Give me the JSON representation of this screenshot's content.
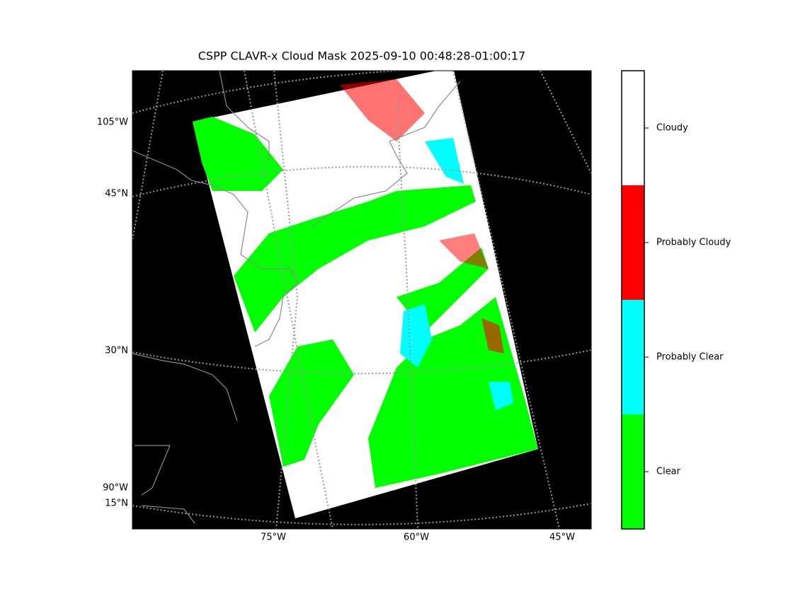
{
  "title": "CSPP CLAVR-x Cloud Mask 2025-09-10 00:48:28-01:00:17",
  "lat_labels": [
    {
      "text": "105°W",
      "row": 173
    },
    {
      "text": "45°N",
      "row": 274
    },
    {
      "text": "30°N",
      "row": 496
    },
    {
      "text": "90°W",
      "row": 690
    },
    {
      "text": "15°N",
      "row": 712
    }
  ],
  "lon_labels": [
    "75°W",
    "60°W",
    "45°W"
  ],
  "colorbar": [
    {
      "label": "Cloudy",
      "color": "#ffffff"
    },
    {
      "label": "Probably Cloudy",
      "color": "#ff0000"
    },
    {
      "label": "Probably Clear",
      "color": "#00ffff"
    },
    {
      "label": "Clear",
      "color": "#00ff00"
    }
  ]
}
